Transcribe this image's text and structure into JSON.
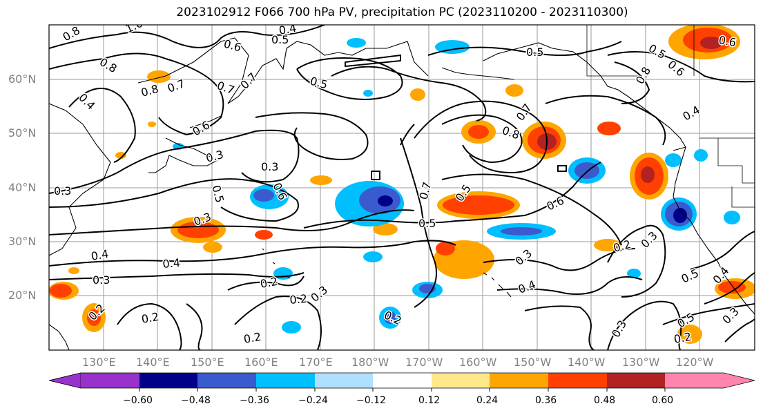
{
  "title": "2023102912 F066 700 hPa PV, precipitation PC (2023110200 - 2023110300)",
  "lat_labels": [
    "60°N",
    "50°N",
    "40°N",
    "30°N",
    "20°N"
  ],
  "lon_labels": [
    "130°E",
    "140°E",
    "150°E",
    "160°E",
    "170°E",
    "180°W",
    "170°W",
    "160°W",
    "150°W",
    "140°W",
    "130°W",
    "120°W"
  ],
  "colorbar": {
    "colors": [
      "#9932cc",
      "#00008b",
      "#3a5bcd",
      "#00bfff",
      "#b0e0ff",
      "#ffffff",
      "#ffe88a",
      "#ffa500",
      "#ff4000",
      "#b22222",
      "#ff85b0"
    ],
    "ticks": [
      "−0.60",
      "−0.48",
      "−0.36",
      "−0.24",
      "−0.12",
      "0.12",
      "0.24",
      "0.36",
      "0.48",
      "0.60"
    ]
  },
  "contour_labels": [
    "0.8",
    "1.0",
    "0.4",
    "0.5",
    "0.6",
    "0.8",
    "0.7",
    "0.8",
    "0.7",
    "0.7",
    "0.4",
    "0.5",
    "0.5",
    "0.6",
    "0.5",
    "0.8",
    "0.6",
    "0.6",
    "0.7",
    "0.8",
    "0.4",
    "0.3",
    "0.3",
    "0.5",
    "0.6",
    "0.3",
    "0.7",
    "0.5",
    "0.6",
    "0.3",
    "0.5",
    "0.4",
    "0.4",
    "0.3",
    "0.2",
    "0.3",
    "0.3",
    "0.2",
    "0.2",
    "0.2",
    "0.2",
    "0.2",
    "0.4",
    "0.3",
    "0.2",
    "0.5",
    "0.4",
    "0.5",
    "0.3",
    "0.3",
    "0.2"
  ]
}
